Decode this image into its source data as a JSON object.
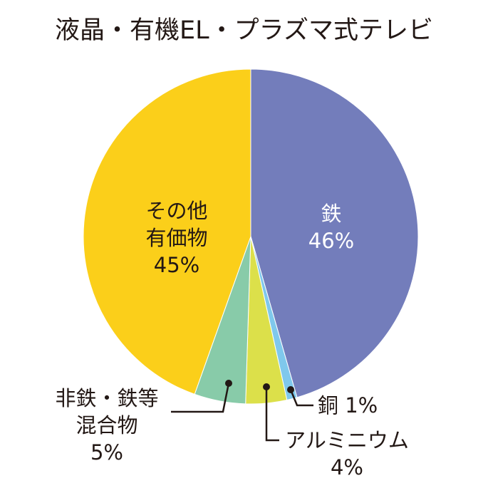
{
  "chart_data": {
    "type": "pie",
    "title": "液晶・有機EL・プラズマ式テレビ",
    "start": "top",
    "direction": "clockwise",
    "slices": [
      {
        "label": [
          "鉄"
        ],
        "value": 46,
        "value_label": "46%",
        "color": "#737DBB"
      },
      {
        "label": [
          "銅"
        ],
        "value": 1,
        "value_label": "1%",
        "color": "#7FC8EC"
      },
      {
        "label": [
          "アルミニウム"
        ],
        "value": 4,
        "value_label": "4%",
        "color": "#DCE04A"
      },
      {
        "label": [
          "非鉄・鉄等",
          "混合物"
        ],
        "value": 5,
        "value_label": "5%",
        "color": "#88CBA9"
      },
      {
        "label": [
          "その他",
          "有価物"
        ],
        "value": 45,
        "value_label": "45%",
        "color": "#FBCF1A"
      }
    ]
  }
}
